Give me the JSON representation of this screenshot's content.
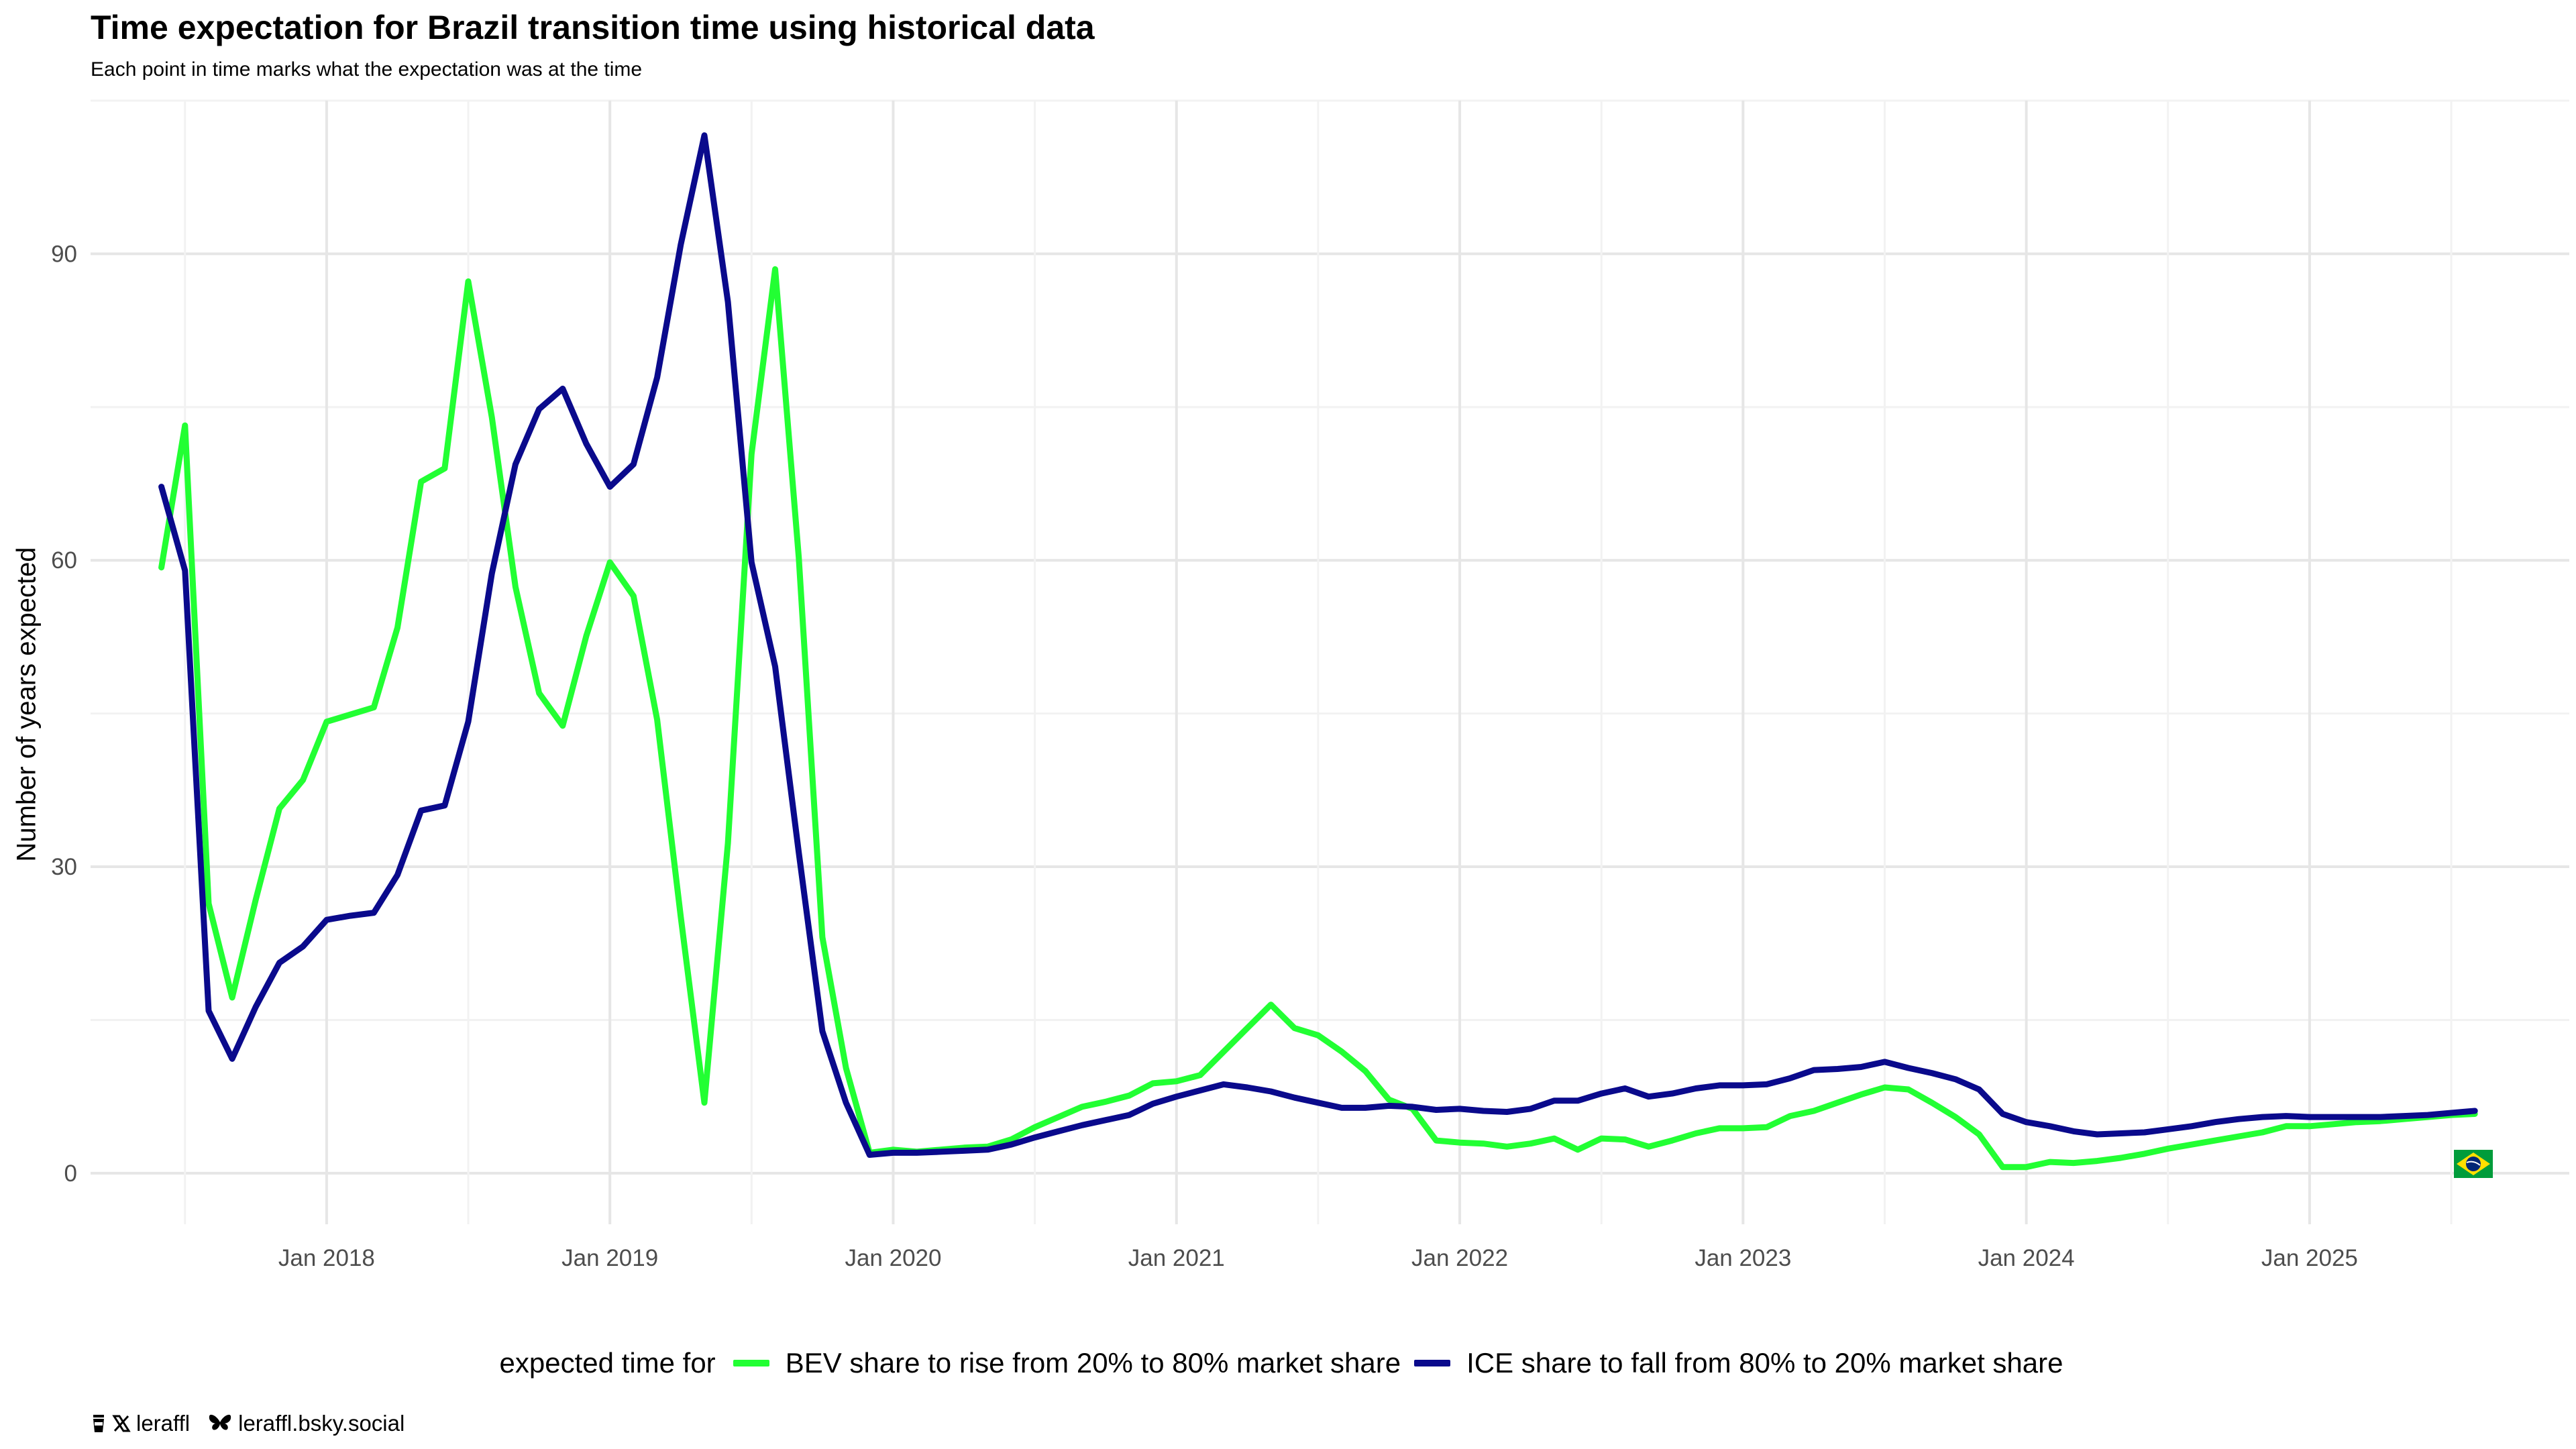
{
  "title": "Time expectation for Brazil transition time using historical data",
  "subtitle": "Each point in time marks what the expectation was at the time",
  "footer": {
    "handle": "leraffl",
    "bluesky": "leraffl.bsky.social"
  },
  "chart_data": {
    "type": "line",
    "title": "Time expectation for Brazil transition time using historical data",
    "subtitle": "Each point in time marks what the expectation was at the time",
    "xlabel": "",
    "ylabel": "Number of years expected",
    "x_ticks": [
      "Jan 2018",
      "Jan 2019",
      "Jan 2020",
      "Jan 2021",
      "Jan 2022",
      "Jan 2023",
      "Jan 2024",
      "Jan 2025"
    ],
    "y_ticks": [
      0,
      30,
      60,
      90
    ],
    "xlim": [
      "2017-03",
      "2025-12"
    ],
    "ylim": [
      -5,
      105
    ],
    "grid": true,
    "legend_title": "expected time for",
    "legend_position": "bottom",
    "country_flag": "Brazil",
    "x": [
      "2017-06",
      "2017-07",
      "2017-08",
      "2017-09",
      "2017-10",
      "2017-11",
      "2017-12",
      "2018-01",
      "2018-02",
      "2018-03",
      "2018-04",
      "2018-05",
      "2018-06",
      "2018-07",
      "2018-08",
      "2018-09",
      "2018-10",
      "2018-11",
      "2018-12",
      "2019-01",
      "2019-02",
      "2019-03",
      "2019-04",
      "2019-05",
      "2019-06",
      "2019-07",
      "2019-08",
      "2019-09",
      "2019-10",
      "2019-11",
      "2019-12",
      "2020-01",
      "2020-02",
      "2020-03",
      "2020-04",
      "2020-05",
      "2020-06",
      "2020-07",
      "2020-08",
      "2020-09",
      "2020-10",
      "2020-11",
      "2020-12",
      "2021-01",
      "2021-02",
      "2021-03",
      "2021-04",
      "2021-05",
      "2021-06",
      "2021-07",
      "2021-08",
      "2021-09",
      "2021-10",
      "2021-11",
      "2021-12",
      "2022-01",
      "2022-02",
      "2022-03",
      "2022-04",
      "2022-05",
      "2022-06",
      "2022-07",
      "2022-08",
      "2022-09",
      "2022-10",
      "2022-11",
      "2022-12",
      "2023-01",
      "2023-02",
      "2023-03",
      "2023-04",
      "2023-05",
      "2023-06",
      "2023-07",
      "2023-08",
      "2023-09",
      "2023-10",
      "2023-11",
      "2023-12",
      "2024-01",
      "2024-02",
      "2024-03",
      "2024-04",
      "2024-05",
      "2024-06",
      "2024-07",
      "2024-08",
      "2024-09",
      "2024-10",
      "2024-11",
      "2024-12",
      "2025-01",
      "2025-02",
      "2025-03",
      "2025-04",
      "2025-05",
      "2025-06",
      "2025-07",
      "2025-08"
    ],
    "series": [
      {
        "name": "BEV share to rise from 20% to 80% market share",
        "color": "#22ff33",
        "values": [
          59.3,
          73.2,
          26.4,
          17.2,
          26.8,
          35.7,
          38.5,
          44.2,
          44.9,
          45.6,
          53.4,
          67.7,
          69.0,
          87.3,
          74.0,
          57.4,
          47.0,
          43.8,
          52.6,
          59.8,
          56.5,
          44.4,
          25.1,
          6.9,
          32.3,
          70.4,
          88.5,
          60.3,
          23.1,
          10.3,
          2.0,
          2.3,
          2.1,
          2.3,
          2.5,
          2.6,
          3.3,
          4.5,
          5.5,
          6.5,
          7.0,
          7.6,
          8.8,
          9.0,
          9.6,
          11.9,
          14.2,
          16.5,
          14.2,
          13.5,
          11.9,
          10.0,
          7.2,
          6.3,
          3.2,
          3.0,
          2.9,
          2.6,
          2.9,
          3.4,
          2.3,
          3.4,
          3.3,
          2.6,
          3.2,
          3.9,
          4.4,
          4.4,
          4.5,
          5.6,
          6.1,
          6.9,
          7.7,
          8.4,
          8.2,
          6.9,
          5.5,
          3.8,
          0.6,
          0.6,
          1.1,
          1.0,
          1.2,
          1.5,
          1.9,
          2.4,
          2.8,
          3.2,
          3.6,
          4.0,
          4.6,
          4.6,
          4.8,
          5.0,
          5.1,
          5.3,
          5.5,
          5.7,
          5.8
        ]
      },
      {
        "name": "ICE share to fall from 80% to 20% market share",
        "color": "#0a0a8c",
        "values": [
          67.2,
          59.0,
          15.9,
          11.2,
          16.3,
          20.6,
          22.2,
          24.8,
          25.2,
          25.5,
          29.2,
          35.5,
          36.0,
          44.2,
          58.7,
          69.4,
          74.8,
          76.8,
          71.4,
          67.2,
          69.4,
          77.9,
          90.9,
          101.6,
          85.3,
          59.8,
          49.6,
          31.4,
          13.9,
          6.9,
          1.8,
          2.0,
          2.0,
          2.1,
          2.2,
          2.3,
          2.8,
          3.5,
          4.1,
          4.7,
          5.2,
          5.7,
          6.8,
          7.5,
          8.1,
          8.7,
          8.4,
          8.0,
          7.4,
          6.9,
          6.4,
          6.4,
          6.6,
          6.5,
          6.2,
          6.3,
          6.1,
          6.0,
          6.3,
          7.1,
          7.1,
          7.8,
          8.3,
          7.5,
          7.8,
          8.3,
          8.6,
          8.6,
          8.7,
          9.3,
          10.1,
          10.2,
          10.4,
          10.9,
          10.3,
          9.8,
          9.2,
          8.2,
          5.8,
          5.0,
          4.6,
          4.1,
          3.8,
          3.9,
          4.0,
          4.3,
          4.6,
          5.0,
          5.3,
          5.5,
          5.6,
          5.5,
          5.5,
          5.5,
          5.5,
          5.6,
          5.7,
          5.9,
          6.1
        ]
      }
    ]
  }
}
